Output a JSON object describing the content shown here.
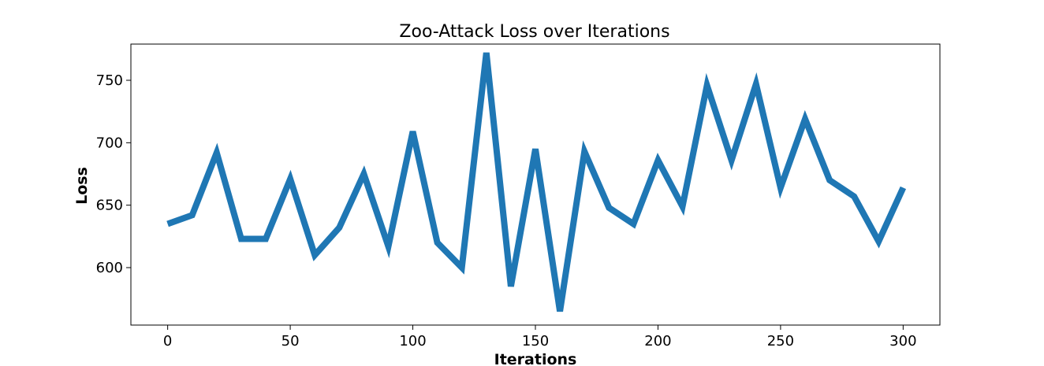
{
  "chart_data": {
    "type": "line",
    "title": "Zoo-Attack Loss over Iterations",
    "xlabel": "Iterations",
    "ylabel": "Loss",
    "xlim": [
      -15,
      315
    ],
    "ylim": [
      554,
      779
    ],
    "xticks": [
      0,
      50,
      100,
      150,
      200,
      250,
      300
    ],
    "yticks": [
      600,
      650,
      700,
      750
    ],
    "grid": false,
    "color": "#1f77b4",
    "series": [
      {
        "x": [
          0,
          10,
          20,
          30,
          40,
          50,
          60,
          70,
          80,
          90,
          100,
          110,
          120,
          130,
          140,
          150,
          160,
          170,
          180,
          190,
          200,
          210,
          220,
          230,
          240,
          250,
          260,
          270,
          280,
          290,
          300
        ],
        "y": [
          635,
          642,
          692,
          623,
          623,
          671,
          610,
          632,
          675,
          617,
          709,
          620,
          600,
          772,
          585,
          695,
          565,
          693,
          648,
          635,
          686,
          649,
          746,
          686,
          747,
          664,
          719,
          670,
          657,
          621,
          664
        ]
      }
    ]
  }
}
